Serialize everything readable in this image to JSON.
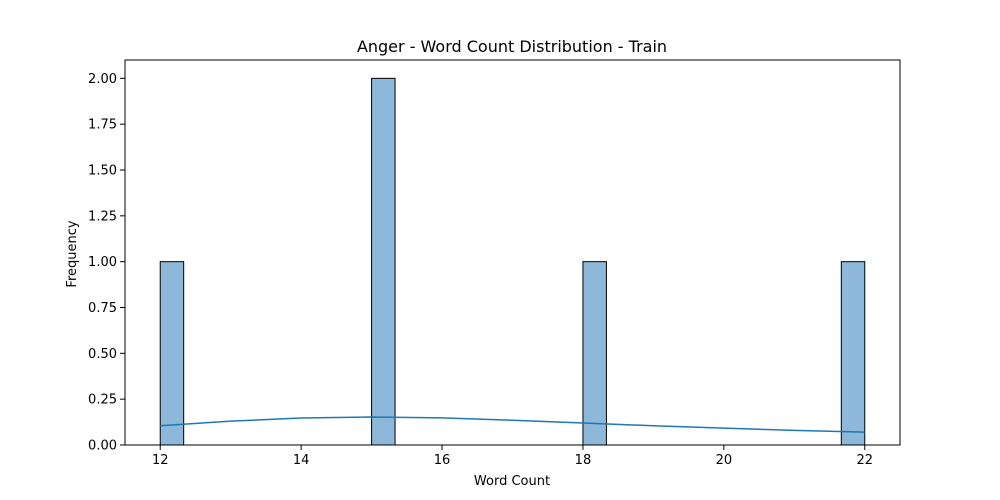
{
  "chart_data": {
    "type": "bar",
    "title": "Anger - Word Count Distribution - Train",
    "xlabel": "Word Count",
    "ylabel": "Frequency",
    "xlim": [
      11.5,
      22.5
    ],
    "ylim": [
      0,
      2.1
    ],
    "x_ticks": [
      12,
      14,
      16,
      18,
      20,
      22
    ],
    "x_tick_labels": [
      "12",
      "14",
      "16",
      "18",
      "20",
      "22"
    ],
    "y_ticks": [
      0,
      0.25,
      0.5,
      0.75,
      1.0,
      1.25,
      1.5,
      1.75,
      2.0
    ],
    "y_tick_labels": [
      "0.00",
      "0.25",
      "0.50",
      "0.75",
      "1.00",
      "1.25",
      "1.50",
      "1.75",
      "2.00"
    ],
    "bins": [
      {
        "x_start": 12.0,
        "x_end": 12.333,
        "count": 1
      },
      {
        "x_start": 15.0,
        "x_end": 15.333,
        "count": 2
      },
      {
        "x_start": 18.0,
        "x_end": 18.333,
        "count": 1
      },
      {
        "x_start": 21.667,
        "x_end": 22.0,
        "count": 1
      }
    ],
    "kde": {
      "x": [
        12,
        13,
        14,
        15,
        16,
        17,
        18,
        19,
        20,
        21,
        22
      ],
      "y": [
        0.105,
        0.13,
        0.147,
        0.153,
        0.148,
        0.135,
        0.12,
        0.105,
        0.092,
        0.08,
        0.07
      ]
    },
    "grid": false,
    "colors": {
      "bar_fill": "#8db8da",
      "bar_edge": "#000000",
      "kde_line": "#1f77b4"
    }
  }
}
